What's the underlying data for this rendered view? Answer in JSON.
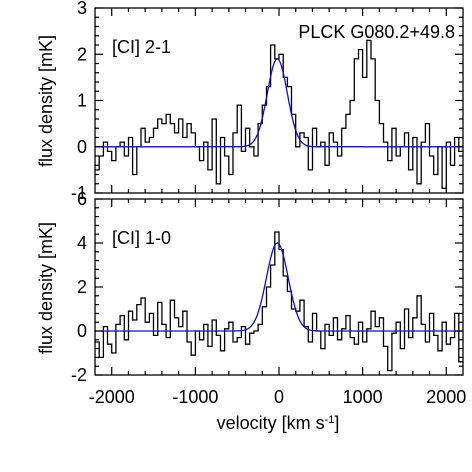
{
  "chart_data": [
    {
      "type": "line",
      "title": "PLCK G080.2+49.8",
      "panel_label": "[CI] 2-1",
      "ylabel": "flux density [mK]",
      "xlabel": "",
      "xlim": [
        -2200,
        2200
      ],
      "ylim": [
        -1,
        3
      ],
      "yticks": [
        -1,
        0,
        1,
        2,
        3
      ],
      "xticks": [
        -2000,
        -1000,
        0,
        1000,
        2000
      ],
      "series": [
        {
          "name": "",
          "style": "step",
          "color": "#000000",
          "x": [
            -2200,
            -2150,
            -2100,
            -2050,
            -2000,
            -1950,
            -1900,
            -1850,
            -1800,
            -1750,
            -1700,
            -1650,
            -1600,
            -1550,
            -1500,
            -1450,
            -1400,
            -1350,
            -1300,
            -1250,
            -1200,
            -1150,
            -1100,
            -1050,
            -1000,
            -950,
            -900,
            -850,
            -800,
            -750,
            -700,
            -650,
            -600,
            -550,
            -500,
            -450,
            -400,
            -350,
            -300,
            -250,
            -200,
            -150,
            -100,
            -50,
            0,
            50,
            100,
            150,
            200,
            250,
            300,
            350,
            400,
            450,
            500,
            550,
            600,
            650,
            700,
            750,
            800,
            850,
            900,
            950,
            1000,
            1050,
            1100,
            1150,
            1200,
            1250,
            1300,
            1350,
            1400,
            1450,
            1500,
            1550,
            1600,
            1650,
            1700,
            1750,
            1800,
            1850,
            1900,
            1950,
            2000,
            2050,
            2100,
            2150
          ],
          "values": [
            -0.5,
            -0.2,
            0.1,
            -0.1,
            -0.3,
            0.0,
            0.1,
            -0.2,
            0.2,
            -0.6,
            0.0,
            0.4,
            0.1,
            0.2,
            0.4,
            0.6,
            0.5,
            0.7,
            0.5,
            0.3,
            0.6,
            0.2,
            0.5,
            0.3,
            0.0,
            -0.3,
            0.1,
            -0.5,
            0.6,
            -0.8,
            0.2,
            -0.2,
            -0.6,
            0.3,
            0.9,
            -0.1,
            0.4,
            0.0,
            -0.2,
            0.5,
            0.9,
            1.3,
            2.2,
            1.9,
            2.0,
            1.5,
            1.3,
            0.7,
            0.0,
            0.3,
            0.2,
            -0.5,
            0.4,
            0.0,
            0.1,
            -0.4,
            0.3,
            0.1,
            -0.2,
            0.4,
            0.7,
            1.0,
            1.9,
            2.1,
            1.5,
            2.3,
            1.9,
            1.0,
            0.5,
            0.1,
            -0.3,
            0.4,
            -0.2,
            0.0,
            0.3,
            -0.5,
            0.2,
            -0.8,
            0.1,
            0.5,
            -0.2,
            -0.6,
            0.0,
            -0.9,
            0.1,
            -0.4,
            0.2,
            -0.1
          ]
        },
        {
          "name": "",
          "style": "gaussian",
          "color": "#1010c0",
          "amplitude": 1.9,
          "center": -20,
          "sigma": 120,
          "baseline": 0.0
        }
      ]
    },
    {
      "type": "line",
      "panel_label": "[CI] 1-0",
      "ylabel": "flux density [mK]",
      "xlabel": "velocity [km s",
      "xlabel_sup": "-1",
      "xlabel_suffix": "]",
      "xlim": [
        -2200,
        2200
      ],
      "ylim": [
        -2,
        6
      ],
      "yticks": [
        -2,
        0,
        2,
        4,
        6
      ],
      "xticks": [
        -2000,
        -1000,
        0,
        1000,
        2000
      ],
      "xtick_labels": [
        "-2000",
        "-1000",
        "0",
        "1000",
        "2000"
      ],
      "series": [
        {
          "name": "",
          "style": "step",
          "color": "#000000",
          "x": [
            -2200,
            -2150,
            -2100,
            -2050,
            -2000,
            -1950,
            -1900,
            -1850,
            -1800,
            -1750,
            -1700,
            -1650,
            -1600,
            -1550,
            -1500,
            -1450,
            -1400,
            -1350,
            -1300,
            -1250,
            -1200,
            -1150,
            -1100,
            -1050,
            -1000,
            -950,
            -900,
            -850,
            -800,
            -750,
            -700,
            -650,
            -600,
            -550,
            -500,
            -450,
            -400,
            -350,
            -300,
            -250,
            -200,
            -150,
            -100,
            -50,
            0,
            50,
            100,
            150,
            200,
            250,
            300,
            350,
            400,
            450,
            500,
            550,
            600,
            650,
            700,
            750,
            800,
            850,
            900,
            950,
            1000,
            1050,
            1100,
            1150,
            1200,
            1250,
            1300,
            1350,
            1400,
            1450,
            1500,
            1550,
            1600,
            1650,
            1700,
            1750,
            1800,
            1850,
            1900,
            1950,
            2000,
            2050,
            2100,
            2150
          ],
          "values": [
            -0.5,
            -1.2,
            0.2,
            -0.6,
            -1.0,
            0.3,
            0.7,
            -0.4,
            0.9,
            0.5,
            1.2,
            1.5,
            0.4,
            0.8,
            -0.2,
            1.3,
            0.3,
            -0.3,
            1.4,
            0.6,
            0.2,
            0.9,
            -0.5,
            -1.1,
            0.0,
            -0.4,
            0.3,
            -0.7,
            0.5,
            -0.2,
            -0.9,
            0.1,
            0.4,
            -0.5,
            -0.3,
            0.2,
            -0.6,
            -0.1,
            0.0,
            0.3,
            1.1,
            2.0,
            3.0,
            4.5,
            3.7,
            2.5,
            1.8,
            1.0,
            0.9,
            1.4,
            0.2,
            -0.5,
            0.8,
            0.0,
            -0.8,
            0.3,
            -0.2,
            0.6,
            -0.4,
            0.1,
            0.7,
            -0.3,
            -0.6,
            0.4,
            -0.5,
            0.1,
            0.9,
            0.2,
            0.6,
            -0.7,
            -1.8,
            -0.1,
            0.4,
            -0.8,
            1.0,
            -0.3,
            0.6,
            1.6,
            0.3,
            -0.5,
            0.8,
            -0.2,
            -0.9,
            0.4,
            -0.6,
            -0.3,
            0.8,
            -1.4
          ]
        },
        {
          "name": "",
          "style": "gaussian",
          "color": "#1010c0",
          "amplitude": 4.0,
          "center": -20,
          "sigma": 130,
          "baseline": 0.0
        }
      ]
    }
  ]
}
